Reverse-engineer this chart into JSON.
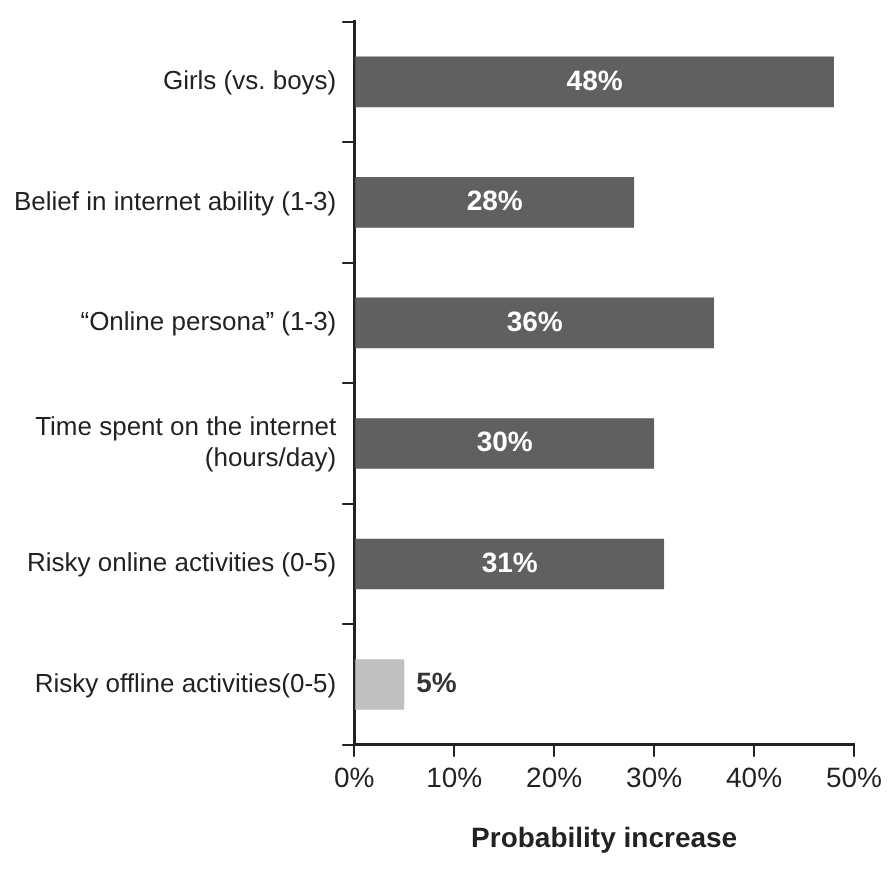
{
  "chart_data": {
    "type": "bar",
    "orientation": "horizontal",
    "xlabel": "Probability increase",
    "categories": [
      "Girls (vs. boys)",
      "Belief in internet ability (1-3)",
      "“Online persona” (1-3)",
      "Time spent on the internet\n(hours/day)",
      "Risky online activities (0-5)",
      "Risky offline activities(0-5)"
    ],
    "values": [
      48,
      28,
      36,
      30,
      31,
      5
    ],
    "colors": [
      "#606060",
      "#606060",
      "#606060",
      "#606060",
      "#606060",
      "#c0c0c0"
    ],
    "value_labels": [
      "48%",
      "28%",
      "36%",
      "30%",
      "31%",
      "5%"
    ],
    "xlim": [
      0,
      50
    ],
    "xticks": [
      {
        "value": 0,
        "label": "0%"
      },
      {
        "value": 10,
        "label": "10%"
      },
      {
        "value": 20,
        "label": "20%"
      },
      {
        "value": 30,
        "label": "30%"
      },
      {
        "value": 40,
        "label": "40%"
      },
      {
        "value": 50,
        "label": "50%"
      }
    ],
    "grid": false,
    "legend": false
  }
}
